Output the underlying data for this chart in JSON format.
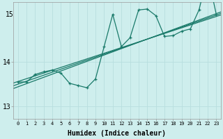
{
  "title": "",
  "xlabel": "Humidex (Indice chaleur)",
  "background_color": "#ceeeed",
  "line_color": "#1a7a6a",
  "grid_color": "#b8dede",
  "x_data": [
    0,
    1,
    2,
    3,
    4,
    5,
    6,
    7,
    8,
    9,
    10,
    11,
    12,
    13,
    14,
    15,
    16,
    17,
    18,
    19,
    20,
    21,
    22,
    23
  ],
  "y_data": [
    13.55,
    13.55,
    13.72,
    13.78,
    13.82,
    13.75,
    13.52,
    13.47,
    13.42,
    13.62,
    14.35,
    15.08,
    14.35,
    14.55,
    15.18,
    15.2,
    15.05,
    14.58,
    14.6,
    14.7,
    14.75,
    15.18,
    15.98,
    15.08
  ],
  "ylim_min": 12.72,
  "ylim_max": 15.35,
  "xlim_min": -0.5,
  "xlim_max": 23.5,
  "yticks": [
    13,
    14
  ],
  "ytick_label_top": "15",
  "xticks": [
    0,
    1,
    2,
    3,
    4,
    5,
    6,
    7,
    8,
    9,
    10,
    11,
    12,
    13,
    14,
    15,
    16,
    17,
    18,
    19,
    20,
    21,
    22,
    23
  ],
  "regression_lines": [
    {
      "slope": 0.068,
      "intercept": 13.5
    },
    {
      "slope": 0.072,
      "intercept": 13.44
    },
    {
      "slope": 0.064,
      "intercept": 13.56
    }
  ]
}
